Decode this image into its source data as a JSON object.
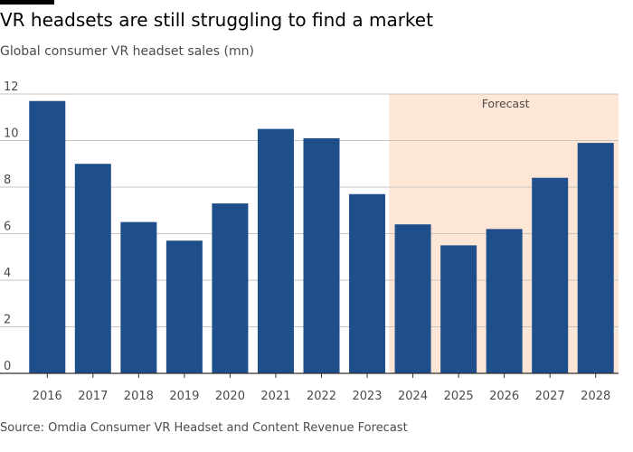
{
  "header": {
    "title": "VR headsets are still struggling to find a market",
    "subtitle": "Global consumer VR headset sales (mn)"
  },
  "footer": {
    "source": "Source: Omdia Consumer VR Headset and Content Revenue Forecast"
  },
  "colors": {
    "bar": "#1f4f8b",
    "forecast_band": "#fde6d6",
    "gridline": "#c9c4bf",
    "baseline": "#33302e"
  },
  "chart_data": {
    "type": "bar",
    "title": "VR headsets are still struggling to find a market",
    "subtitle": "Global consumer VR headset sales (mn)",
    "categories": [
      "2016",
      "2017",
      "2018",
      "2019",
      "2020",
      "2021",
      "2022",
      "2023",
      "2024",
      "2025",
      "2026",
      "2027",
      "2028"
    ],
    "values": [
      11.7,
      9.0,
      6.5,
      5.7,
      7.3,
      10.5,
      10.1,
      7.7,
      6.4,
      5.5,
      6.2,
      8.4,
      9.9
    ],
    "ylim": [
      0,
      12
    ],
    "yticks": [
      0,
      2,
      4,
      6,
      8,
      10,
      12
    ],
    "grid": true,
    "forecast": {
      "label": "Forecast",
      "from": "2024",
      "to": "2028"
    }
  }
}
